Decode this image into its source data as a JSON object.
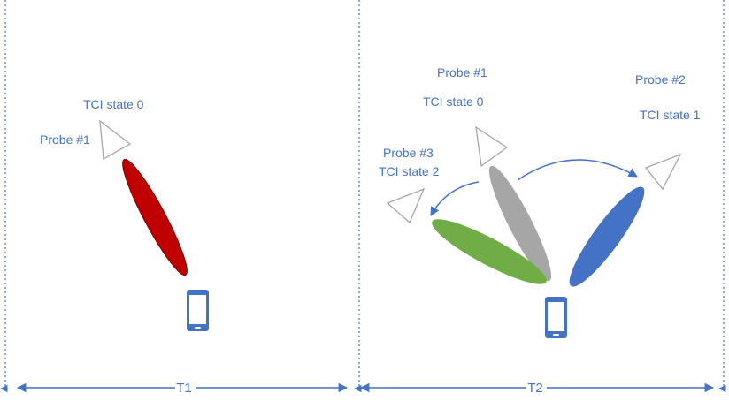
{
  "colors": {
    "text": "#4472c4",
    "axis": "#4472c4",
    "beam_red": "#c00000",
    "beam_gray": "#a6a6a6",
    "beam_green": "#70ad47",
    "beam_blue": "#4472c4",
    "probe_outline": "#a6a6a6",
    "ue": "#4472c4"
  },
  "icons": {
    "probe": "triangle-probe-icon",
    "ue": "smartphone-icon"
  },
  "panels": [
    {
      "period_label": "T1",
      "labels": {
        "tci_state": "TCI state 0",
        "probe": "Probe #1"
      }
    },
    {
      "period_label": "T2",
      "labels": {
        "probe1": "Probe #1",
        "tci0": "TCI state 0",
        "probe2": "Probe #2",
        "tci1": "TCI state 1",
        "probe3": "Probe #3",
        "tci2": "TCI state 2"
      }
    }
  ]
}
